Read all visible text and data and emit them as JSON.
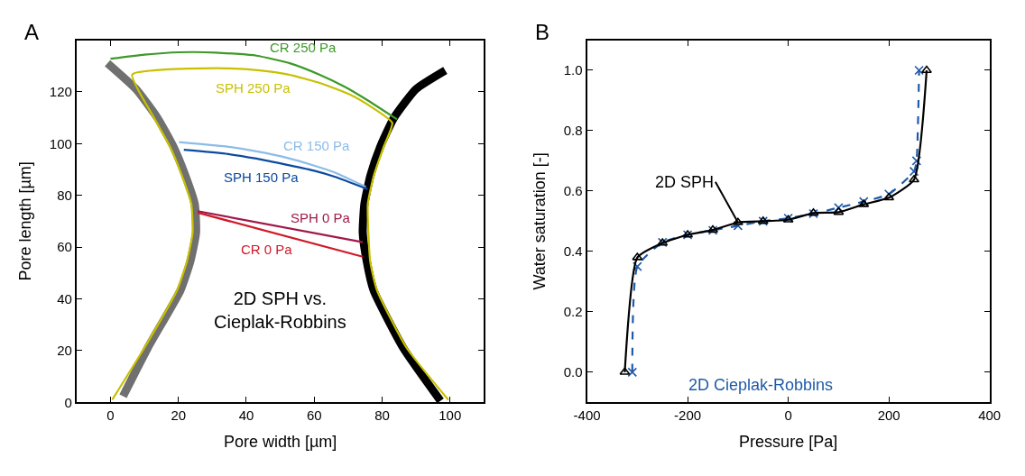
{
  "chart_data": [
    {
      "type": "line",
      "title": "A",
      "xlabel": "Pore width [µm]",
      "ylabel": "Pore length [µm]",
      "xlim": [
        -10,
        110
      ],
      "ylim": [
        0,
        140
      ],
      "xticks": [
        0,
        20,
        40,
        60,
        80,
        100
      ],
      "yticks": [
        0,
        20,
        40,
        60,
        80,
        100,
        120
      ],
      "legend": false,
      "marker": "none",
      "line_style": "solid",
      "annotations": [
        "2D SPH vs.\nCieplak-Robbins"
      ],
      "series": [
        {
          "color": "#707070",
          "x": [
            3.7,
            11,
            20.6,
            23.5,
            25.2,
            24.8,
            22,
            18.5,
            13.8,
            7.5,
            -0.9
          ],
          "values": [
            2.4,
            21.1,
            43.3,
            54.4,
            65.6,
            76.7,
            87.8,
            98.9,
            110,
            121.1,
            131.1
          ]
        },
        {
          "color": "#000000",
          "x": [
            97.2,
            86.2,
            77.5,
            75.5,
            74.3,
            74.8,
            76.6,
            79.5,
            83.5,
            90,
            98.6
          ],
          "values": [
            0.6,
            21.1,
            43.3,
            54.4,
            65.6,
            76.7,
            87.8,
            98.9,
            110,
            121.1,
            128.3
          ]
        },
        {
          "name": "CR 250 Pa",
          "color": "#3c9a28",
          "x": [
            0,
            10,
            20.2,
            31,
            43,
            53,
            61.5,
            69,
            75.2,
            84.4
          ],
          "values": [
            132.8,
            134.4,
            135.3,
            135.2,
            134,
            131,
            126.7,
            122,
            117.2,
            109.4
          ]
        },
        {
          "name": "SPH 250 Pa",
          "color": "#c8c000",
          "x": [
            0.5,
            10,
            19.6,
            22.5,
            24.2,
            23.8,
            21,
            17.5,
            12.8,
            6.4,
            20.2,
            33.9,
            44,
            52.3,
            62,
            70.6,
            77,
            83,
            80.5,
            77.6,
            75.8,
            76.5,
            78.5,
            87.2,
            99.5
          ],
          "values": [
            1,
            21.1,
            43.3,
            54.4,
            65.6,
            76.7,
            87.8,
            98.9,
            110,
            126.7,
            128.9,
            129.1,
            128.3,
            126.7,
            123.3,
            118.9,
            114,
            108,
            98.9,
            87.8,
            76.7,
            54.4,
            43.3,
            21.1,
            1
          ]
        },
        {
          "name": "CR 150 Pa",
          "color": "#8cbce8",
          "x": [
            20.2,
            33.9,
            43,
            52.3,
            60,
            66,
            75.2
          ],
          "values": [
            100.6,
            98.9,
            97,
            94.4,
            91.5,
            88.9,
            83.3
          ]
        },
        {
          "name": "SPH 150 Pa",
          "color": "#0c4aa0",
          "x": [
            21.6,
            33.9,
            43,
            52.3,
            60,
            66,
            75.7
          ],
          "values": [
            97.6,
            96.1,
            94.2,
            91.7,
            89.5,
            87.2,
            82.4
          ]
        },
        {
          "name": "SPH 0 Pa",
          "color": "#a01848",
          "x": [
            25.7,
            74.3
          ],
          "values": [
            73.9,
            61.9
          ]
        },
        {
          "name": "CR 0 Pa",
          "color": "#d01828",
          "x": [
            25.7,
            74.3
          ],
          "values": [
            73.3,
            56.3
          ]
        }
      ]
    },
    {
      "type": "line",
      "title": "B",
      "xlabel": "Pressure [Pa]",
      "ylabel": "Water saturation [-]",
      "xlim": [
        -400,
        400
      ],
      "ylim": [
        -0.1,
        1.1
      ],
      "xticks": [
        -400,
        -200,
        0,
        200,
        400
      ],
      "yticks": [
        {
          "value": 0,
          "label": "0.0"
        },
        0.2,
        0.4,
        0.6,
        0.8,
        {
          "value": 1,
          "label": "1.0"
        }
      ],
      "legend": false,
      "series": [
        {
          "name": "2D Cieplak-Robbins",
          "color": "#1f5aa8",
          "marker": "cross",
          "line_style": "dashed",
          "x": [
            -310,
            -300,
            -250,
            -200,
            -150,
            -100,
            -50,
            0,
            50,
            100,
            150,
            200,
            250,
            255,
            260
          ],
          "values": [
            0,
            0.35,
            0.43,
            0.455,
            0.47,
            0.485,
            0.5,
            0.51,
            0.525,
            0.545,
            0.565,
            0.59,
            0.665,
            0.7,
            1.0
          ]
        },
        {
          "name": "2D SPH",
          "color": "#000000",
          "marker": "triangle",
          "line_style": "solid",
          "x": [
            -325,
            -300,
            -250,
            -200,
            -150,
            -100,
            -50,
            0,
            50,
            100,
            150,
            200,
            250,
            275
          ],
          "values": [
            0,
            0.38,
            0.428,
            0.455,
            0.471,
            0.496,
            0.5,
            0.505,
            0.527,
            0.53,
            0.556,
            0.578,
            0.638,
            1.0
          ]
        }
      ]
    }
  ]
}
